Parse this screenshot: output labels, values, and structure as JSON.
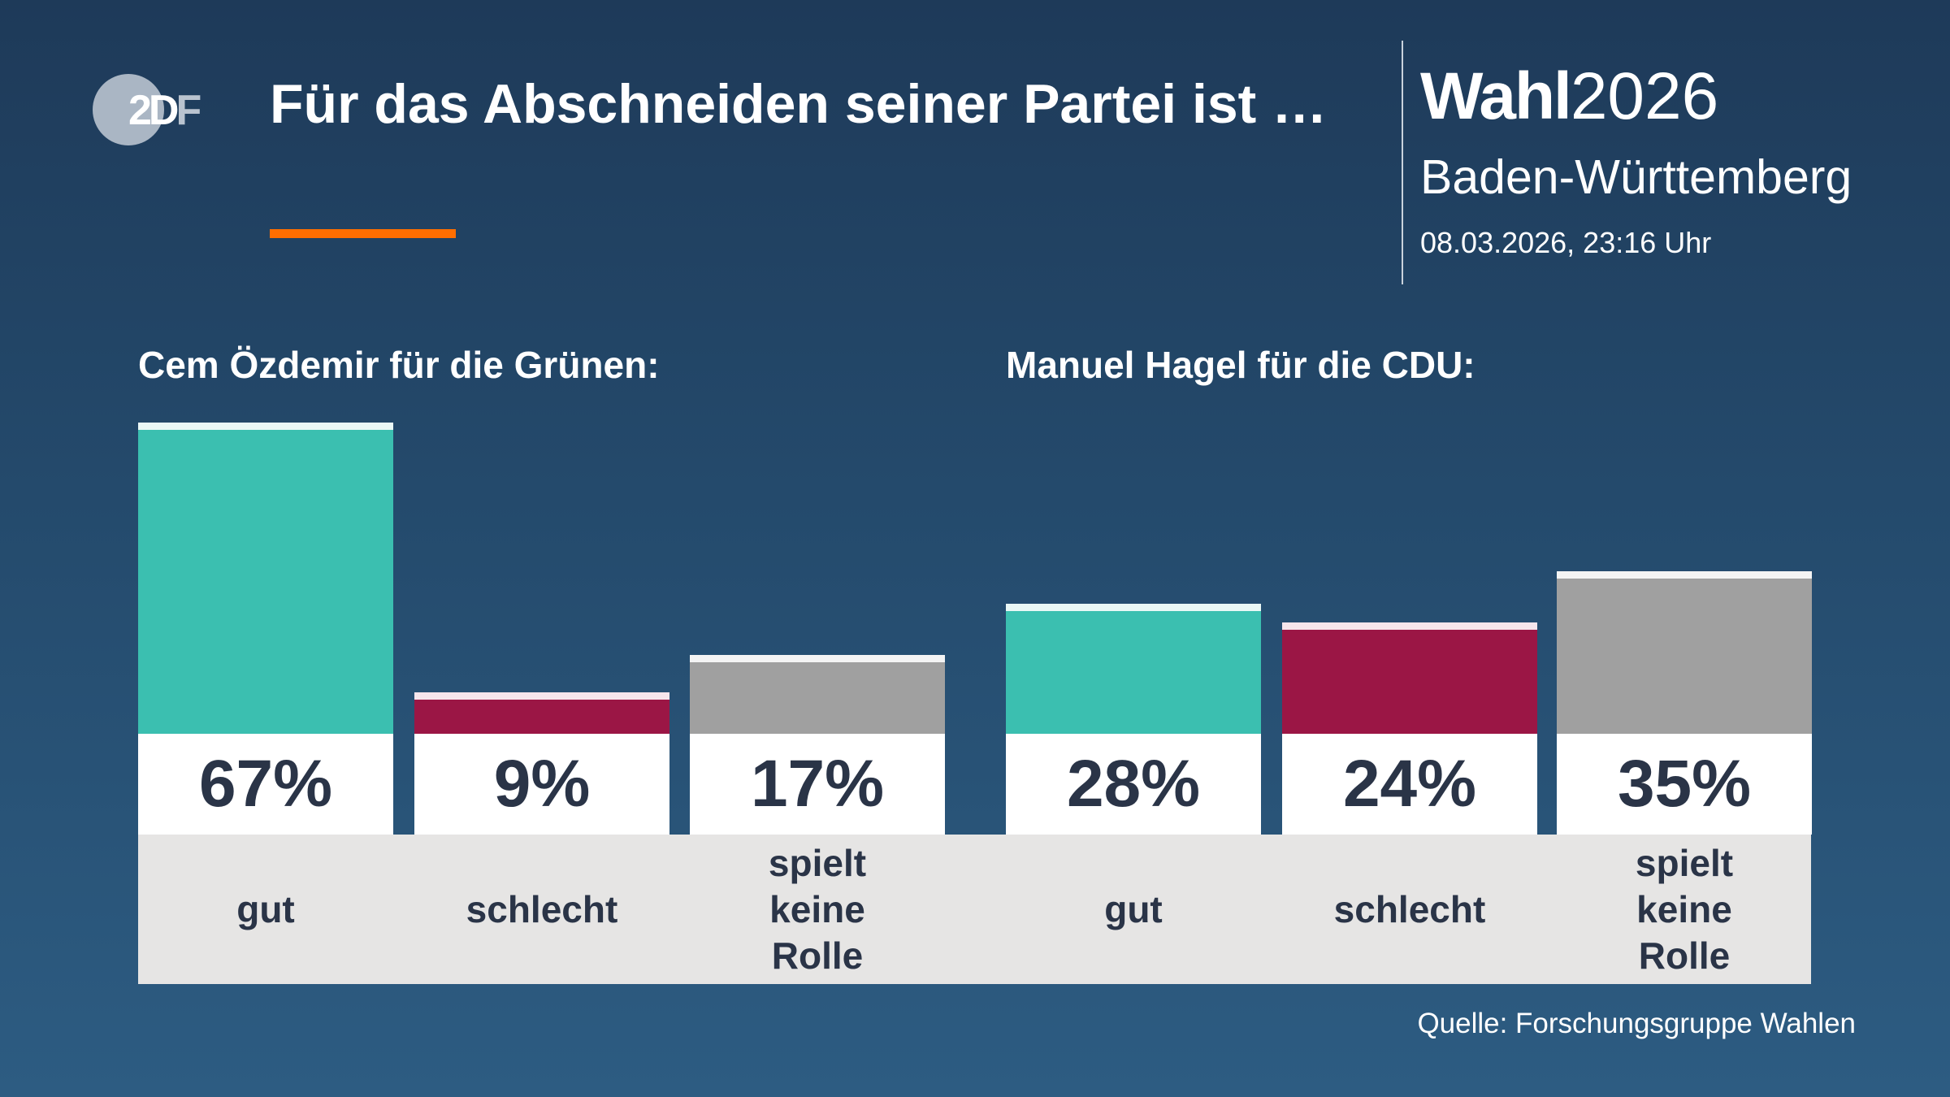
{
  "header": {
    "logo": "ZDF",
    "title": "Für das Abschneiden seiner Partei ist …",
    "brand_bold": "Wahl",
    "brand_year": "2026",
    "region": "Baden-Württemberg",
    "timestamp": "08.03.2026, 23:16 Uhr"
  },
  "colors": {
    "gut": "#3bbfb0",
    "schlecht": "#9b1645",
    "keine_rolle": "#a0a0a0",
    "accent": "#ff6e00"
  },
  "chart_data": [
    {
      "type": "bar",
      "title": "Cem Özdemir für die Grünen:",
      "categories": [
        "gut",
        "schlecht",
        "spielt keine Rolle"
      ],
      "values": [
        67,
        9,
        17
      ],
      "labels": [
        "67%",
        "9%",
        "17%"
      ],
      "unit": "%"
    },
    {
      "type": "bar",
      "title": "Manuel Hagel für die CDU:",
      "categories": [
        "gut",
        "schlecht",
        "spielt keine Rolle"
      ],
      "values": [
        28,
        24,
        35
      ],
      "labels": [
        "28%",
        "24%",
        "35%"
      ],
      "unit": "%"
    }
  ],
  "footer": {
    "source": "Quelle: Forschungsgruppe Wahlen"
  }
}
